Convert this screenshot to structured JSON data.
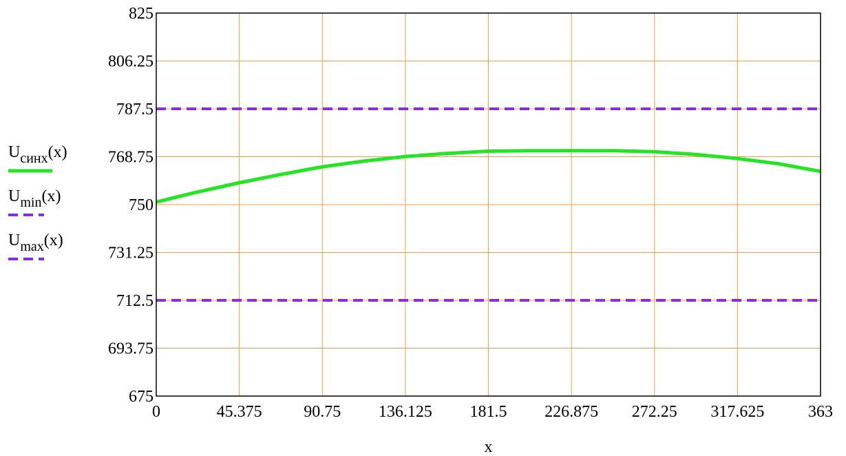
{
  "chart_data": {
    "type": "line",
    "xlabel": "x",
    "ylabel": "",
    "title": "",
    "xlim": [
      0,
      363
    ],
    "ylim": [
      675,
      825
    ],
    "x_ticks": [
      "0",
      "45.375",
      "90.75",
      "136.125",
      "181.5",
      "226.875",
      "272.25",
      "317.625",
      "363"
    ],
    "y_ticks": [
      "825",
      "806.25",
      "787.5",
      "768.75",
      "750",
      "731.25",
      "712.5",
      "693.75",
      "675"
    ],
    "grid": true,
    "legend_position": "left",
    "colors": {
      "grid": "#f0a040",
      "axis": "#000000"
    },
    "series": [
      {
        "name": "U",
        "subscript": "синх",
        "suffix": "(x)",
        "color": "#22e622",
        "style": "solid",
        "x": [
          0,
          20,
          45,
          68,
          90,
          113,
          136,
          158,
          181,
          204,
          227,
          250,
          272,
          295,
          318,
          340,
          363
        ],
        "y": [
          751,
          754.5,
          758.5,
          761.8,
          764.7,
          767,
          768.8,
          770,
          770.9,
          771.1,
          771.1,
          771.1,
          770.7,
          769.6,
          768,
          766,
          763
        ]
      },
      {
        "name": "U",
        "subscript": "min",
        "suffix": "(x)",
        "color": "#8b2be2",
        "style": "dashed",
        "x": [
          0,
          363
        ],
        "y": [
          712.5,
          712.5
        ]
      },
      {
        "name": "U",
        "subscript": "max",
        "suffix": "(x)",
        "color": "#8b2be2",
        "style": "dashed",
        "x": [
          0,
          363
        ],
        "y": [
          787.5,
          787.5
        ]
      }
    ]
  }
}
